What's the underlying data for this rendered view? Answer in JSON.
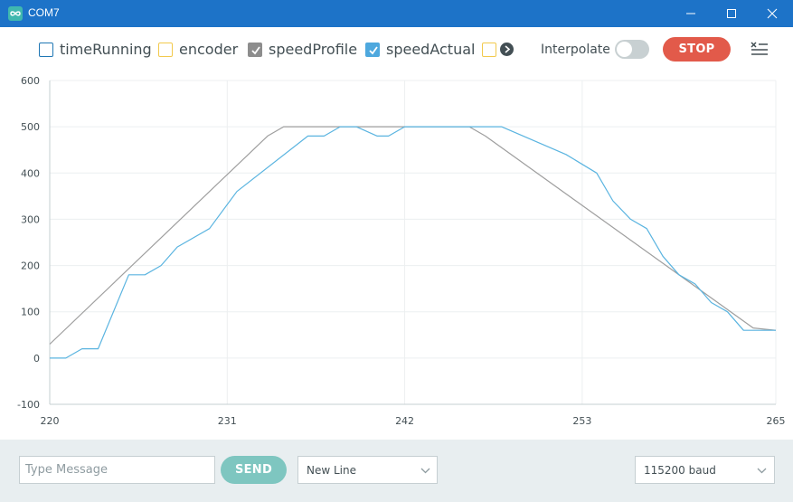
{
  "window": {
    "title": "COM7",
    "icon": "arduino-infinity-icon",
    "controls": [
      "minimize-icon",
      "maximize-icon",
      "close-icon"
    ]
  },
  "toolbar": {
    "series_toggles": [
      {
        "label": "timeRunning",
        "checked": false,
        "color": "#1f77b4"
      },
      {
        "label": "encoder",
        "checked": false,
        "color": "#f2c94c"
      },
      {
        "label": "speedProfile",
        "checked": true,
        "color": "#8d8d8d"
      },
      {
        "label": "speedActual",
        "checked": true,
        "color": "#4ea8de"
      },
      {
        "label": "",
        "checked": false,
        "color": "#f2c94c"
      }
    ],
    "more_icon": "chevron-right-icon",
    "interpolate_label": "Interpolate",
    "interpolate_on": false,
    "stop_label": "STOP",
    "clear_icon": "clear-list-icon"
  },
  "colors": {
    "accent": "#e25a4a",
    "send": "#7ec6c0",
    "titlebar": "#1d73c8",
    "speedProfile": "#9e9e9e",
    "speedActual": "#5ab4e0"
  },
  "chart_data": {
    "type": "line",
    "xlim": [
      220,
      265
    ],
    "ylim": [
      -100,
      600
    ],
    "x_ticks": [
      "220",
      "231",
      "242",
      "253",
      "265"
    ],
    "y_ticks": [
      "600",
      "500",
      "400",
      "300",
      "200",
      "100",
      "0",
      "-100"
    ],
    "grid": true,
    "series": [
      {
        "name": "speedProfile",
        "color": "#9e9e9e",
        "x": [
          220,
          233.5,
          234.5,
          246.0,
          247.0,
          263.6,
          265
        ],
        "y": [
          30,
          480,
          500,
          500,
          480,
          65,
          60
        ]
      },
      {
        "name": "speedActual",
        "color": "#5ab4e0",
        "x": [
          220,
          221,
          222,
          223,
          224.9,
          225.9,
          226.9,
          227.9,
          229.9,
          231.6,
          236.0,
          237.0,
          238.0,
          239.0,
          240.3,
          241.0,
          242.0,
          243.0,
          246.0,
          248.0,
          252.0,
          253.9,
          254.9,
          256.0,
          257.0,
          258.0,
          259.0,
          260.0,
          261.0,
          262.0,
          263.0,
          264.0,
          265
        ],
        "y": [
          0,
          0,
          20,
          20,
          180,
          180,
          200,
          240,
          280,
          360,
          480,
          480,
          500,
          500,
          480,
          480,
          500,
          500,
          500,
          500,
          440,
          400,
          340,
          300,
          280,
          220,
          180,
          160,
          120,
          100,
          60,
          60,
          60
        ]
      }
    ]
  },
  "footer": {
    "message_placeholder": "Type Message",
    "send_label": "SEND",
    "line_ending": "New Line",
    "baud": "115200 baud",
    "dropdown_icon": "chevron-down-icon"
  }
}
